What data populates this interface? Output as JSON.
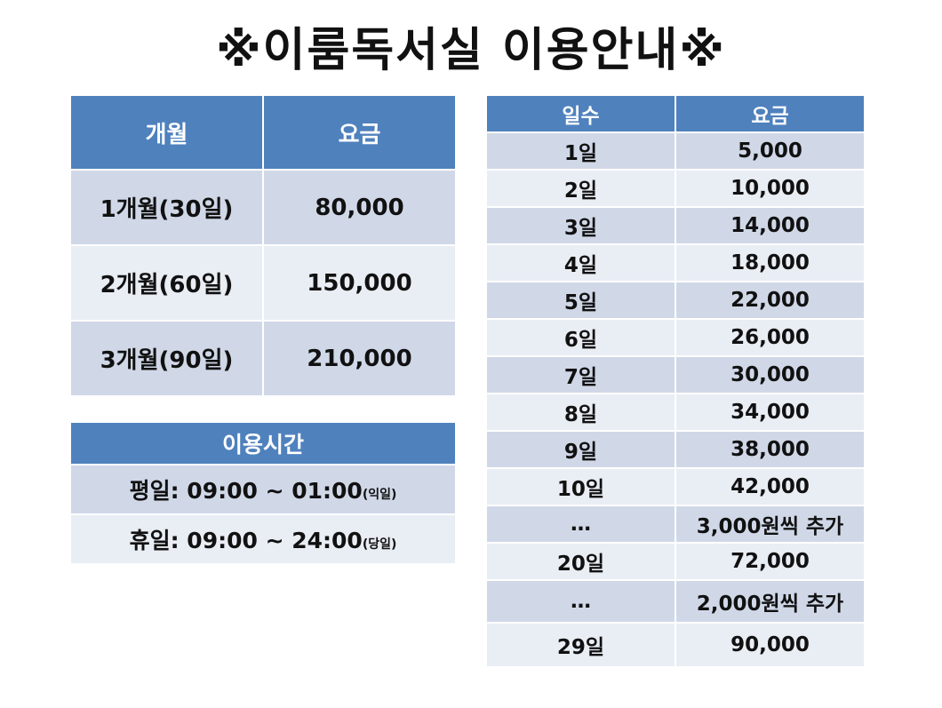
{
  "title": "※이룸독서실 이용안내※",
  "monthly": {
    "headers": [
      "개월",
      "요금"
    ],
    "rows": [
      {
        "period": "1개월(30일)",
        "fee": "80,000"
      },
      {
        "period": "2개월(60일)",
        "fee": "150,000"
      },
      {
        "period": "3개월(90일)",
        "fee": "210,000"
      }
    ]
  },
  "hours": {
    "header": "이용시간",
    "weekday": {
      "label": "평일: 09:00 ~ 01:00",
      "note": "(익일)"
    },
    "holiday": {
      "label": "휴일: 09:00 ~ 24:00",
      "note": "(당일)"
    }
  },
  "daily": {
    "headers": [
      "일수",
      "요금"
    ],
    "rows": [
      {
        "days": "1일",
        "fee": "5,000"
      },
      {
        "days": "2일",
        "fee": "10,000"
      },
      {
        "days": "3일",
        "fee": "14,000"
      },
      {
        "days": "4일",
        "fee": "18,000"
      },
      {
        "days": "5일",
        "fee": "22,000"
      },
      {
        "days": "6일",
        "fee": "26,000"
      },
      {
        "days": "7일",
        "fee": "30,000"
      },
      {
        "days": "8일",
        "fee": "34,000"
      },
      {
        "days": "9일",
        "fee": "38,000"
      },
      {
        "days": "10일",
        "fee": "42,000"
      },
      {
        "days": "…",
        "fee": "3,000원씩 추가"
      },
      {
        "days": "20일",
        "fee": "72,000"
      },
      {
        "days": "…",
        "fee": "2,000원씩 추가"
      },
      {
        "days": "29일",
        "fee": "90,000"
      }
    ]
  },
  "colors": {
    "header": "#4f81bd",
    "row_dark": "#d0d8e8",
    "row_light": "#e9edf4"
  }
}
